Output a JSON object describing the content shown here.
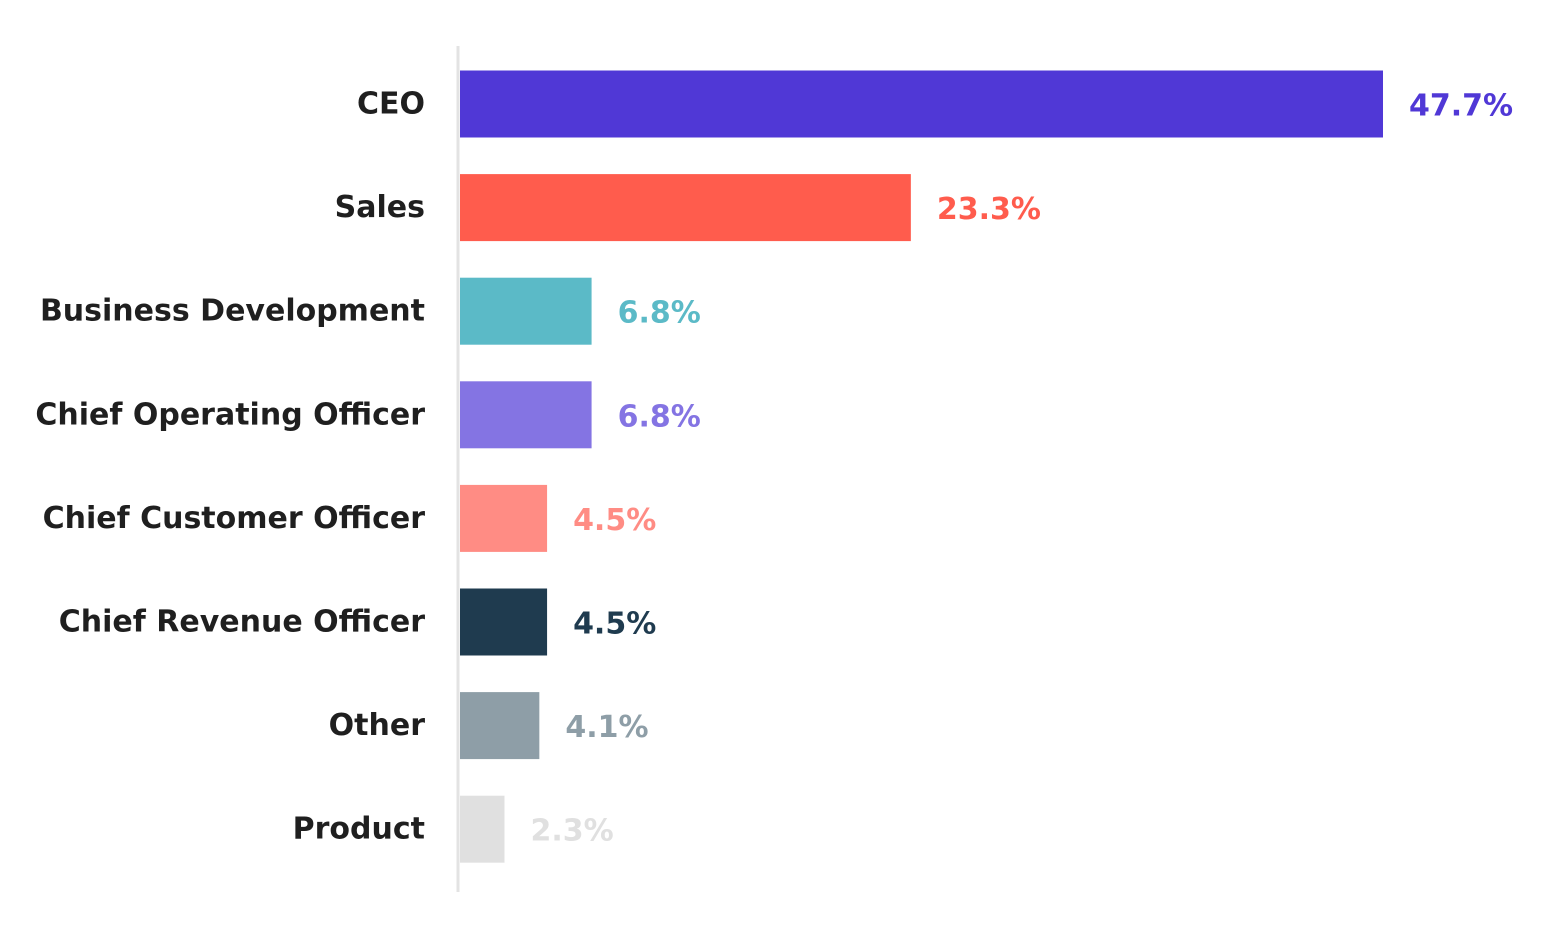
{
  "chart_data": {
    "type": "bar",
    "orientation": "horizontal",
    "categories": [
      "CEO",
      "Sales",
      "Business Development",
      "Chief Operating Officer",
      "Chief Customer Officer",
      "Chief Revenue Officer",
      "Other",
      "Product"
    ],
    "values": [
      47.7,
      23.3,
      6.8,
      6.8,
      4.5,
      4.5,
      4.1,
      2.3
    ],
    "value_labels": [
      "47.7%",
      "23.3%",
      "6.8%",
      "6.8%",
      "4.5%",
      "4.5%",
      "4.1%",
      "2.3%"
    ],
    "colors": [
      "#5038d6",
      "#ff5c4d",
      "#5bbac7",
      "#8474e3",
      "#ff8c84",
      "#1f3b4f",
      "#8e9ea7",
      "#e0e0e0"
    ],
    "value_unit": "%",
    "xlim": [
      0,
      47.7
    ],
    "grid": false,
    "legend": "none",
    "axis_color": "#e3e3e3",
    "category_label_color": "#1f1f1f"
  }
}
